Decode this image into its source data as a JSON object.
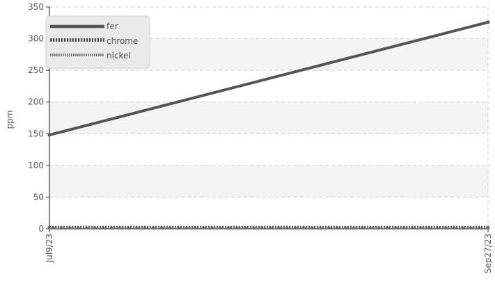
{
  "chart_data": {
    "type": "line",
    "title": "",
    "xlabel": "",
    "ylabel": "ppm",
    "x": [
      "Jul9/23",
      "Sep27/23"
    ],
    "x_tick_labels": [
      "Jul9/23",
      "Sep27/23"
    ],
    "ylim": [
      0,
      350
    ],
    "y_ticks": [
      0,
      50,
      100,
      150,
      200,
      250,
      300,
      350
    ],
    "grid": true,
    "legend_position": "top-left",
    "series": [
      {
        "name": "fer",
        "values": [
          148,
          326
        ],
        "color": "#555555",
        "style": "solid"
      },
      {
        "name": "chrome",
        "values": [
          2,
          2
        ],
        "color": "#555555",
        "style": "dashed"
      },
      {
        "name": "nickel",
        "values": [
          1,
          1
        ],
        "color": "#777777",
        "style": "dotted"
      }
    ]
  }
}
